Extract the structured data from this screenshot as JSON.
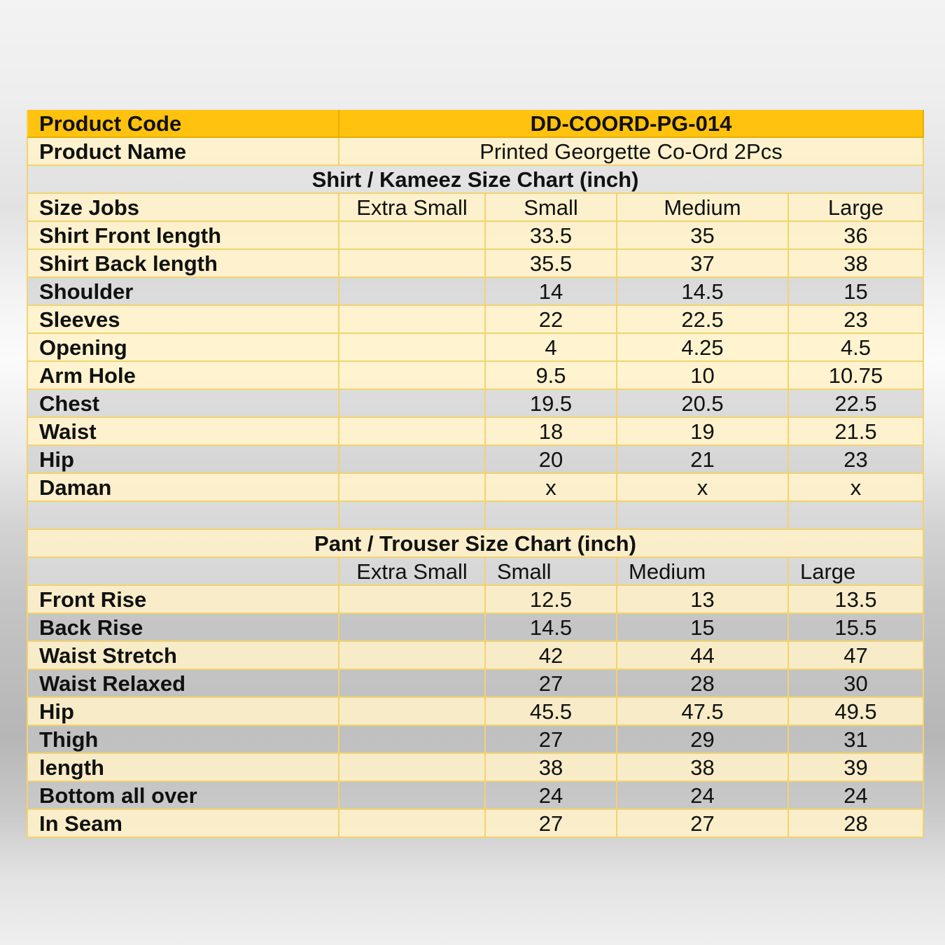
{
  "product": {
    "code_label": "Product Code",
    "code": "DD-COORD-PG-014",
    "name_label": "Product Name",
    "name": "Printed Georgette Co-Ord 2Pcs"
  },
  "shirt": {
    "title": "Shirt / Kameez Size Chart (inch)",
    "header": [
      "Size Jobs",
      "Extra Small",
      "Small",
      "Medium",
      "Large"
    ],
    "rows": [
      {
        "label": "Shirt Front length",
        "xs": "",
        "s": "33.5",
        "m": "35",
        "l": "36"
      },
      {
        "label": "Shirt Back length",
        "xs": "",
        "s": "35.5",
        "m": "37",
        "l": "38"
      },
      {
        "label": "Shoulder",
        "xs": "",
        "s": "14",
        "m": "14.5",
        "l": "15"
      },
      {
        "label": "Sleeves",
        "xs": "",
        "s": "22",
        "m": "22.5",
        "l": "23"
      },
      {
        "label": "Opening",
        "xs": "",
        "s": "4",
        "m": "4.25",
        "l": "4.5"
      },
      {
        "label": "Arm Hole",
        "xs": "",
        "s": "9.5",
        "m": "10",
        "l": "10.75"
      },
      {
        "label": "Chest",
        "xs": "",
        "s": "19.5",
        "m": "20.5",
        "l": "22.5"
      },
      {
        "label": "Waist",
        "xs": "",
        "s": "18",
        "m": "19",
        "l": "21.5"
      },
      {
        "label": "Hip",
        "xs": "",
        "s": "20",
        "m": "21",
        "l": "23"
      },
      {
        "label": "Daman",
        "xs": "",
        "s": "x",
        "m": "x",
        "l": "x"
      }
    ]
  },
  "pant": {
    "title": "Pant / Trouser Size Chart (inch)",
    "header": [
      "",
      "Extra Small",
      "Small",
      "Medium",
      "Large"
    ],
    "rows": [
      {
        "label": "Front Rise",
        "xs": "",
        "s": "12.5",
        "m": "13",
        "l": "13.5"
      },
      {
        "label": "Back Rise",
        "xs": "",
        "s": "14.5",
        "m": "15",
        "l": "15.5"
      },
      {
        "label": "Waist Stretch",
        "xs": "",
        "s": "42",
        "m": "44",
        "l": "47"
      },
      {
        "label": "Waist Relaxed",
        "xs": "",
        "s": "27",
        "m": "28",
        "l": "30"
      },
      {
        "label": "Hip",
        "xs": "",
        "s": "45.5",
        "m": "47.5",
        "l": "49.5"
      },
      {
        "label": "Thigh",
        "xs": "",
        "s": "27",
        "m": "29",
        "l": "31"
      },
      {
        "label": "length",
        "xs": "",
        "s": "38",
        "m": "38",
        "l": "39"
      },
      {
        "label": "Bottom all over",
        "xs": "",
        "s": "24",
        "m": "24",
        "l": "24"
      },
      {
        "label": "In Seam",
        "xs": "",
        "s": "27",
        "m": "27",
        "l": "28"
      }
    ]
  }
}
